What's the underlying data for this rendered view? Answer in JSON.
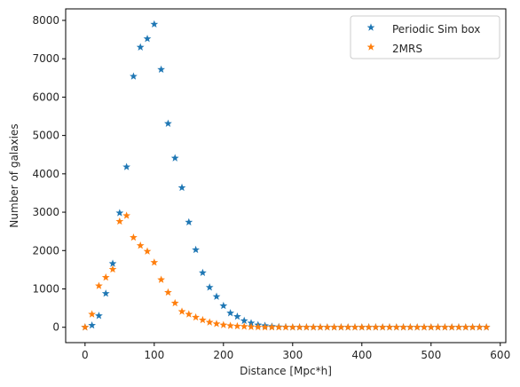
{
  "chart_data": {
    "type": "scatter",
    "title": "",
    "xlabel": "Distance [Mpc*h]",
    "ylabel": "Number of galaxies",
    "xlim": [
      -28,
      608
    ],
    "ylim": [
      -400,
      8300
    ],
    "xticks": [
      0,
      100,
      200,
      300,
      400,
      500,
      600
    ],
    "yticks": [
      0,
      1000,
      2000,
      3000,
      4000,
      5000,
      6000,
      7000,
      8000
    ],
    "grid": false,
    "legend_position": "top-right",
    "marker": "star",
    "series": [
      {
        "name": "Periodic Sim box",
        "color": "#1f77b4",
        "x": [
          0,
          10,
          20,
          30,
          40,
          50,
          60,
          70,
          80,
          90,
          100,
          110,
          120,
          130,
          140,
          150,
          160,
          170,
          180,
          190,
          200,
          210,
          220,
          230,
          240,
          250,
          260,
          270,
          280,
          290,
          300,
          310,
          320,
          330,
          340,
          350,
          360,
          370,
          380,
          390,
          400,
          410,
          420,
          430,
          440,
          450,
          460,
          470,
          480,
          490,
          500,
          510,
          520,
          530,
          540,
          550,
          560,
          570,
          580
        ],
        "y": [
          0,
          50,
          300,
          880,
          1660,
          2980,
          4180,
          6540,
          7300,
          7520,
          7900,
          6720,
          5310,
          4410,
          3640,
          2740,
          2020,
          1420,
          1040,
          800,
          560,
          370,
          280,
          170,
          110,
          60,
          40,
          20,
          10,
          5,
          0,
          0,
          0,
          0,
          0,
          0,
          0,
          0,
          0,
          0,
          0,
          0,
          0,
          0,
          0,
          0,
          0,
          0,
          0,
          0,
          0,
          0,
          0,
          0,
          0,
          0,
          0,
          0,
          0
        ]
      },
      {
        "name": "2MRS",
        "color": "#ff7f0e",
        "x": [
          0,
          10,
          20,
          30,
          40,
          50,
          60,
          70,
          80,
          90,
          100,
          110,
          120,
          130,
          140,
          150,
          160,
          170,
          180,
          190,
          200,
          210,
          220,
          230,
          240,
          250,
          260,
          270,
          280,
          290,
          300,
          310,
          320,
          330,
          340,
          350,
          360,
          370,
          380,
          390,
          400,
          410,
          420,
          430,
          440,
          450,
          460,
          470,
          480,
          490,
          500,
          510,
          520,
          530,
          540,
          550,
          560,
          570,
          580
        ],
        "y": [
          0,
          340,
          1080,
          1300,
          1510,
          2760,
          2910,
          2340,
          2130,
          1980,
          1690,
          1240,
          910,
          630,
          410,
          340,
          260,
          190,
          130,
          90,
          60,
          40,
          30,
          20,
          10,
          5,
          0,
          0,
          0,
          0,
          0,
          0,
          0,
          0,
          0,
          0,
          0,
          0,
          0,
          0,
          0,
          0,
          0,
          0,
          0,
          0,
          0,
          0,
          0,
          0,
          0,
          0,
          0,
          0,
          0,
          0,
          0,
          0,
          0
        ]
      }
    ]
  }
}
